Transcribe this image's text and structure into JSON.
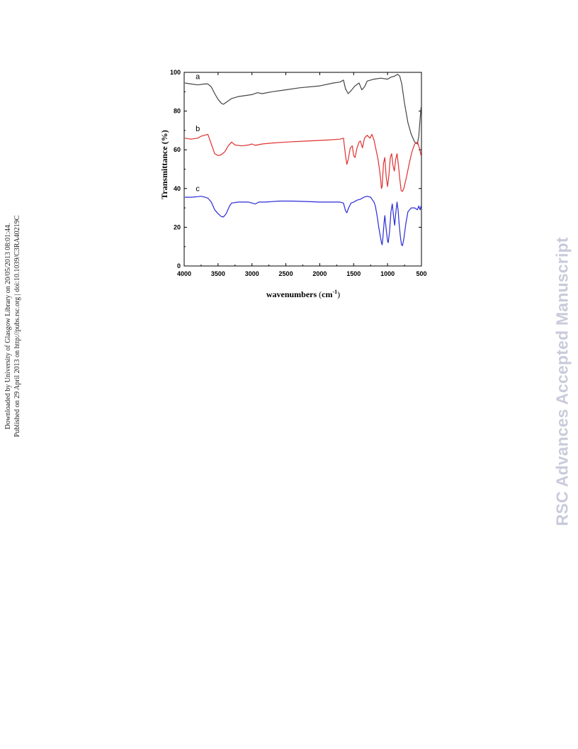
{
  "margin_note": {
    "line1": "Downloaded by University of Glasgow Library on 20/05/2013 08:01:44.",
    "line2": "Published on 29 April 2013 on http://pubs.rsc.org | doi:10.1039/C3RA40219C"
  },
  "watermark": "RSC Advances Accepted Manuscript",
  "chart_data": {
    "type": "line",
    "title": "",
    "xlabel": "wavenumbers",
    "xlabel_unit": "cm",
    "xlabel_unit_exp": "-1",
    "ylabel": "Transmittance (%)",
    "xlim": [
      4000,
      500
    ],
    "x_reversed": true,
    "ylim": [
      0,
      100
    ],
    "xticks": [
      4000,
      3500,
      3000,
      2500,
      2000,
      1500,
      1000,
      500
    ],
    "yticks": [
      0,
      20,
      40,
      60,
      80,
      100
    ],
    "grid": false,
    "legend": "none",
    "series": [
      {
        "name": "a",
        "color": "#444444",
        "points": [
          [
            3990,
            94.5
          ],
          [
            3900,
            94
          ],
          [
            3800,
            93.5
          ],
          [
            3700,
            94
          ],
          [
            3650,
            94
          ],
          [
            3600,
            92.5
          ],
          [
            3550,
            89
          ],
          [
            3500,
            86
          ],
          [
            3450,
            84
          ],
          [
            3420,
            83.5
          ],
          [
            3380,
            84.5
          ],
          [
            3300,
            86.5
          ],
          [
            3200,
            87.5
          ],
          [
            3000,
            88.5
          ],
          [
            2920,
            89.5
          ],
          [
            2850,
            89
          ],
          [
            2700,
            90
          ],
          [
            2500,
            91
          ],
          [
            2300,
            92
          ],
          [
            2000,
            93
          ],
          [
            1800,
            94.5
          ],
          [
            1700,
            95
          ],
          [
            1650,
            96
          ],
          [
            1620,
            91.5
          ],
          [
            1580,
            89
          ],
          [
            1540,
            90.5
          ],
          [
            1480,
            93
          ],
          [
            1420,
            94.5
          ],
          [
            1380,
            91
          ],
          [
            1340,
            92.5
          ],
          [
            1300,
            95.5
          ],
          [
            1200,
            96.5
          ],
          [
            1100,
            97
          ],
          [
            1000,
            96.5
          ],
          [
            950,
            97.5
          ],
          [
            900,
            98
          ],
          [
            850,
            99
          ],
          [
            820,
            98
          ],
          [
            790,
            94
          ],
          [
            750,
            84
          ],
          [
            700,
            74
          ],
          [
            650,
            68
          ],
          [
            600,
            64
          ],
          [
            560,
            63
          ],
          [
            540,
            67
          ],
          [
            520,
            76
          ],
          [
            505,
            82
          ]
        ]
      },
      {
        "name": "b",
        "color": "#e03030",
        "points": [
          [
            3990,
            66
          ],
          [
            3900,
            65.5
          ],
          [
            3800,
            66
          ],
          [
            3750,
            67
          ],
          [
            3700,
            67.5
          ],
          [
            3650,
            68
          ],
          [
            3600,
            63
          ],
          [
            3550,
            58
          ],
          [
            3500,
            57
          ],
          [
            3450,
            57.5
          ],
          [
            3400,
            59
          ],
          [
            3350,
            62
          ],
          [
            3300,
            64
          ],
          [
            3250,
            62.5
          ],
          [
            3150,
            62
          ],
          [
            3050,
            62.5
          ],
          [
            3000,
            63
          ],
          [
            2950,
            62.3
          ],
          [
            2850,
            63
          ],
          [
            2700,
            63.5
          ],
          [
            2500,
            64
          ],
          [
            2200,
            64.5
          ],
          [
            1900,
            65
          ],
          [
            1700,
            65.5
          ],
          [
            1650,
            66
          ],
          [
            1620,
            57
          ],
          [
            1600,
            52.5
          ],
          [
            1580,
            55
          ],
          [
            1550,
            61
          ],
          [
            1520,
            62
          ],
          [
            1500,
            57
          ],
          [
            1480,
            56
          ],
          [
            1450,
            61
          ],
          [
            1420,
            64
          ],
          [
            1400,
            64.5
          ],
          [
            1370,
            61
          ],
          [
            1340,
            66
          ],
          [
            1300,
            67.5
          ],
          [
            1260,
            66
          ],
          [
            1230,
            68
          ],
          [
            1200,
            65
          ],
          [
            1170,
            60
          ],
          [
            1140,
            55
          ],
          [
            1120,
            50
          ],
          [
            1100,
            44
          ],
          [
            1090,
            40
          ],
          [
            1080,
            41
          ],
          [
            1060,
            53
          ],
          [
            1040,
            56
          ],
          [
            1020,
            46
          ],
          [
            1000,
            41
          ],
          [
            980,
            47
          ],
          [
            960,
            56
          ],
          [
            940,
            58
          ],
          [
            920,
            52
          ],
          [
            900,
            49
          ],
          [
            880,
            55
          ],
          [
            860,
            58
          ],
          [
            840,
            52
          ],
          [
            820,
            45
          ],
          [
            800,
            39
          ],
          [
            780,
            38.5
          ],
          [
            760,
            40
          ],
          [
            720,
            46
          ],
          [
            680,
            53
          ],
          [
            640,
            59
          ],
          [
            600,
            63
          ],
          [
            560,
            64
          ],
          [
            530,
            61
          ],
          [
            505,
            57
          ]
        ]
      },
      {
        "name": "c",
        "color": "#2a2ad8",
        "points": [
          [
            3990,
            35.5
          ],
          [
            3900,
            35.5
          ],
          [
            3800,
            35.8
          ],
          [
            3750,
            36
          ],
          [
            3700,
            35.6
          ],
          [
            3650,
            35
          ],
          [
            3600,
            33
          ],
          [
            3550,
            29
          ],
          [
            3500,
            27
          ],
          [
            3450,
            25.5
          ],
          [
            3420,
            25.3
          ],
          [
            3380,
            27
          ],
          [
            3330,
            31
          ],
          [
            3300,
            32.5
          ],
          [
            3200,
            33
          ],
          [
            3050,
            33
          ],
          [
            2950,
            32
          ],
          [
            2900,
            33
          ],
          [
            2800,
            33
          ],
          [
            2600,
            33.5
          ],
          [
            2400,
            33.5
          ],
          [
            2200,
            33.3
          ],
          [
            2000,
            33
          ],
          [
            1800,
            33
          ],
          [
            1700,
            33
          ],
          [
            1650,
            32.5
          ],
          [
            1620,
            28.5
          ],
          [
            1600,
            27.5
          ],
          [
            1580,
            29.5
          ],
          [
            1540,
            32.5
          ],
          [
            1500,
            33
          ],
          [
            1450,
            34
          ],
          [
            1400,
            34.5
          ],
          [
            1350,
            35.5
          ],
          [
            1300,
            36
          ],
          [
            1250,
            35.5
          ],
          [
            1220,
            34
          ],
          [
            1200,
            33
          ],
          [
            1180,
            31
          ],
          [
            1150,
            25
          ],
          [
            1130,
            20
          ],
          [
            1110,
            16
          ],
          [
            1090,
            12
          ],
          [
            1080,
            11
          ],
          [
            1070,
            14
          ],
          [
            1050,
            23
          ],
          [
            1040,
            26
          ],
          [
            1020,
            19
          ],
          [
            1000,
            13
          ],
          [
            990,
            12
          ],
          [
            970,
            18
          ],
          [
            950,
            28
          ],
          [
            930,
            32
          ],
          [
            910,
            25
          ],
          [
            895,
            21
          ],
          [
            880,
            27
          ],
          [
            860,
            33
          ],
          [
            845,
            29
          ],
          [
            830,
            22
          ],
          [
            810,
            15
          ],
          [
            795,
            11
          ],
          [
            780,
            10.5
          ],
          [
            760,
            14
          ],
          [
            730,
            22
          ],
          [
            700,
            28
          ],
          [
            650,
            30
          ],
          [
            600,
            30
          ],
          [
            560,
            29
          ],
          [
            540,
            31
          ],
          [
            520,
            29
          ],
          [
            505,
            31
          ]
        ]
      }
    ]
  }
}
